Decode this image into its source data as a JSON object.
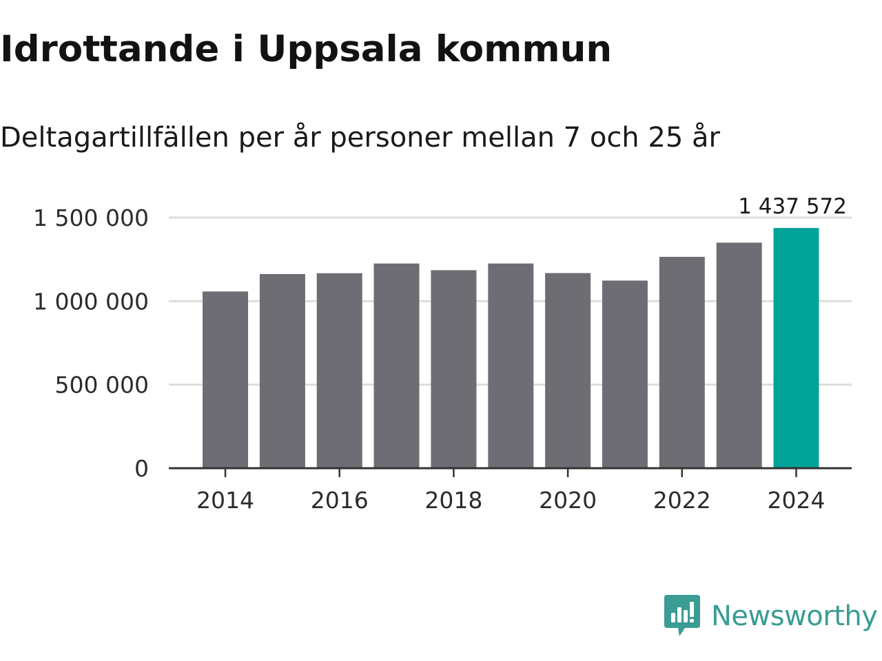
{
  "header": {
    "title": "Idrottande i Uppsala kommun",
    "subtitle": "Deltagartillfällen per år personer mellan 7 och 25 år"
  },
  "chart_data": {
    "type": "bar",
    "title": "Idrottande i Uppsala kommun",
    "subtitle": "Deltagartillfällen per år personer mellan 7 och 25 år",
    "xlabel": "",
    "ylabel": "",
    "categories": [
      "2014",
      "2015",
      "2016",
      "2017",
      "2018",
      "2019",
      "2020",
      "2021",
      "2022",
      "2023",
      "2024"
    ],
    "values": [
      1058000,
      1162000,
      1167000,
      1225000,
      1185000,
      1225000,
      1168000,
      1123000,
      1265000,
      1350000,
      1437572
    ],
    "x_tick_labels": [
      "2014",
      "2016",
      "2018",
      "2020",
      "2022",
      "2024"
    ],
    "y_ticks": [
      0,
      500000,
      1000000,
      1500000
    ],
    "y_tick_labels": [
      "0",
      "500 000",
      "1 000 000",
      "1 500 000"
    ],
    "ylim": [
      0,
      1500000
    ],
    "grid": true,
    "highlight": {
      "category": "2024",
      "label": "1 437 572"
    },
    "colors": {
      "bar": "#6e6d73",
      "highlight": "#00a398",
      "grid": "#dddddd",
      "axis": "#333333"
    }
  },
  "branding": {
    "name": "Newsworthy",
    "icon": "newsworthy-logo-icon",
    "color": "#3a9c93"
  }
}
